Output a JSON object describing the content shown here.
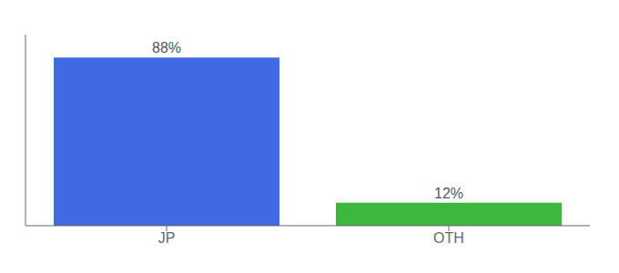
{
  "chart_data": {
    "type": "bar",
    "categories": [
      "JP",
      "OTH"
    ],
    "values": [
      88,
      12
    ],
    "colors": [
      "#4169e1",
      "#3cb93c"
    ],
    "ylim": [
      0,
      100
    ],
    "yticks": [],
    "data_labels": true,
    "value_labels": [
      "88%",
      "12%"
    ],
    "tick_labels": "x",
    "grid": false
  }
}
